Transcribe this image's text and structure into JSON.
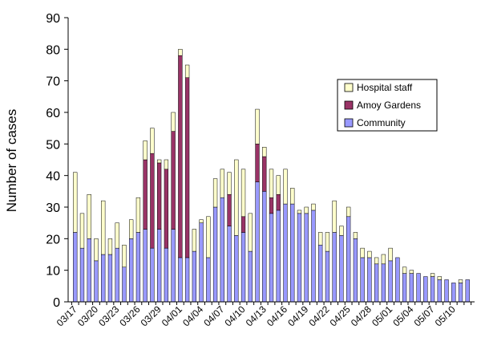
{
  "chart_data": {
    "type": "bar",
    "stacked": true,
    "ylabel": "Number of cases",
    "xlabel": "",
    "title": "",
    "ylim": [
      0,
      90
    ],
    "ytick_step": 10,
    "grid": false,
    "legend_position": "right",
    "category_dates": [
      "03/17",
      "03/18",
      "03/19",
      "03/20",
      "03/21",
      "03/22",
      "03/23",
      "03/24",
      "03/25",
      "03/26",
      "03/27",
      "03/28",
      "03/29",
      "03/30",
      "03/31",
      "04/01",
      "04/02",
      "04/03",
      "04/04",
      "04/05",
      "04/06",
      "04/07",
      "04/08",
      "04/09",
      "04/10",
      "04/11",
      "04/12",
      "04/13",
      "04/14",
      "04/15",
      "04/16",
      "04/17",
      "04/18",
      "04/19",
      "04/20",
      "04/21",
      "04/22",
      "04/23",
      "04/24",
      "04/25",
      "04/26",
      "04/27",
      "04/28",
      "04/29",
      "04/30",
      "05/01",
      "05/02",
      "05/03",
      "05/04",
      "05/05",
      "05/06",
      "05/07",
      "05/08",
      "05/09",
      "05/10",
      "05/11",
      "05/12"
    ],
    "x_tick_labels": [
      "03/17",
      "03/20",
      "03/23",
      "03/26",
      "03/29",
      "04/01",
      "04/04",
      "04/07",
      "04/10",
      "04/13",
      "04/16",
      "04/19",
      "04/22",
      "04/25",
      "04/28",
      "05/01",
      "05/04",
      "05/07",
      "05/10"
    ],
    "series": [
      {
        "name": "Community",
        "color": "#9999ff",
        "values": [
          22,
          17,
          20,
          13,
          15,
          15,
          17,
          11,
          20,
          22,
          23,
          17,
          23,
          17,
          23,
          14,
          14,
          16,
          25,
          14,
          30,
          33,
          24,
          21,
          22,
          16,
          38,
          35,
          28,
          29,
          31,
          31,
          28,
          28,
          29,
          18,
          16,
          22,
          21,
          27,
          20,
          14,
          14,
          12,
          12,
          13,
          14,
          9,
          9,
          9,
          8,
          8,
          7,
          7,
          6,
          6,
          7
        ]
      },
      {
        "name": "Amoy Gardens",
        "color": "#993366",
        "values": [
          0,
          0,
          0,
          0,
          0,
          0,
          0,
          0,
          0,
          0,
          22,
          30,
          21,
          25,
          31,
          64,
          57,
          0,
          0,
          0,
          0,
          0,
          10,
          0,
          5,
          0,
          12,
          11,
          5,
          5,
          0,
          0,
          0,
          0,
          0,
          0,
          0,
          0,
          0,
          0,
          0,
          0,
          0,
          0,
          0,
          0,
          0,
          0,
          0,
          0,
          0,
          0,
          0,
          0,
          0,
          0,
          0
        ]
      },
      {
        "name": "Hospital staff",
        "color": "#ffffcc",
        "values": [
          19,
          11,
          14,
          7,
          17,
          5,
          8,
          7,
          6,
          11,
          6,
          8,
          1,
          3,
          6,
          2,
          4,
          7,
          1,
          13,
          9,
          9,
          7,
          24,
          15,
          12,
          11,
          3,
          9,
          6,
          11,
          5,
          1,
          2,
          2,
          4,
          6,
          10,
          3,
          3,
          2,
          3,
          2,
          2,
          3,
          4,
          0,
          2,
          1,
          0,
          0,
          1,
          1,
          0,
          0,
          1,
          0
        ]
      }
    ]
  }
}
